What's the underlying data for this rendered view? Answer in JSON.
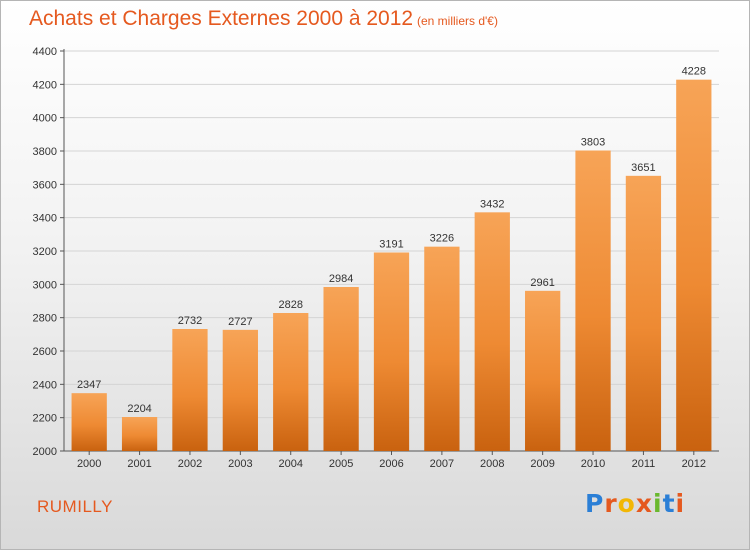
{
  "chart_data": {
    "type": "bar",
    "title": "Achats et Charges Externes 2000 à 2012",
    "subtitle": "(en milliers d'€)",
    "categories": [
      "2000",
      "2001",
      "2002",
      "2003",
      "2004",
      "2005",
      "2006",
      "2007",
      "2008",
      "2009",
      "2010",
      "2011",
      "2012"
    ],
    "values": [
      2347,
      2204,
      2732,
      2727,
      2828,
      2984,
      3191,
      3226,
      3432,
      2961,
      3803,
      3651,
      4228
    ],
    "ylim": [
      2000,
      4400
    ],
    "yticks": [
      2000,
      2200,
      2400,
      2600,
      2800,
      3000,
      3200,
      3400,
      3600,
      3800,
      4000,
      4200,
      4400
    ],
    "grid": true,
    "xlabel": "",
    "ylabel": "",
    "bar_color": "#f0913a"
  },
  "footer": {
    "place": "RUMILLY",
    "brand": "Proxiti"
  },
  "colors": {
    "title": "#e5591f",
    "logo_letters": [
      "#2b7fd6",
      "#e5591f",
      "#f2b705",
      "#e5591f",
      "#6ab82e",
      "#2b7fd6",
      "#e5591f"
    ]
  }
}
